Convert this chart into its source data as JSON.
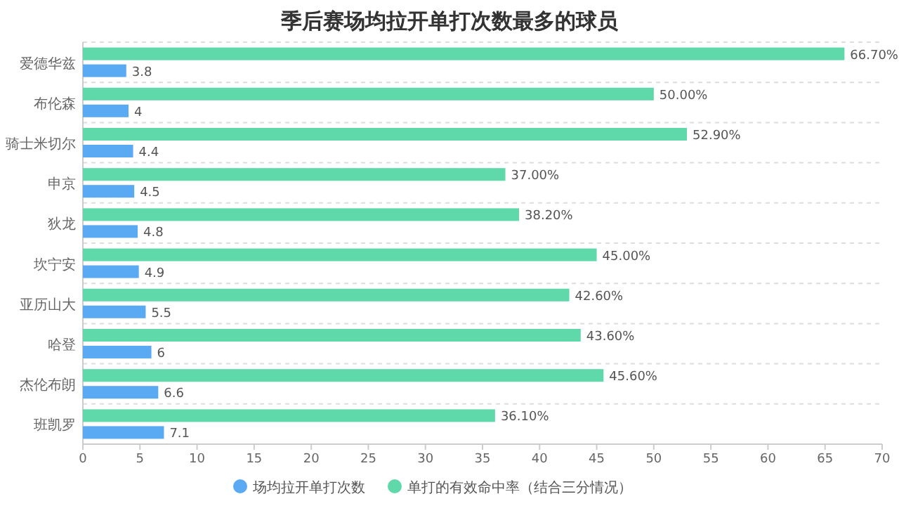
{
  "chart_data": {
    "type": "bar",
    "orientation": "horizontal",
    "title": "季后赛场均拉开单打次数最多的球员",
    "categories": [
      "爱德华兹",
      "布伦森",
      "骑士米切尔",
      "申京",
      "狄龙",
      "坎宁安",
      "亚历山大",
      "哈登",
      "杰伦布朗",
      "班凯罗"
    ],
    "series": [
      {
        "name": "场均拉开单打次数",
        "color": "#5aa9f3",
        "values": [
          3.8,
          4,
          4.4,
          4.5,
          4.8,
          4.9,
          5.5,
          6,
          6.6,
          7.1
        ],
        "value_labels": [
          "3.8",
          "4",
          "4.4",
          "4.5",
          "4.8",
          "4.9",
          "5.5",
          "6",
          "6.6",
          "7.1"
        ]
      },
      {
        "name": "单打的有效命中率（结合三分情况）",
        "color": "#5fd9a9",
        "values": [
          66.7,
          50.0,
          52.9,
          37.0,
          38.2,
          45.0,
          42.6,
          43.6,
          45.6,
          36.1
        ],
        "value_labels": [
          "66.70%",
          "50.00%",
          "52.90%",
          "37.00%",
          "38.20%",
          "45.00%",
          "42.60%",
          "43.60%",
          "45.60%",
          "36.10%"
        ]
      }
    ],
    "xlim": [
      0,
      70
    ],
    "xticks": [
      0,
      5,
      10,
      15,
      20,
      25,
      30,
      35,
      40,
      45,
      50,
      55,
      60,
      65,
      70
    ],
    "grid": "y",
    "legend": "bottom"
  }
}
